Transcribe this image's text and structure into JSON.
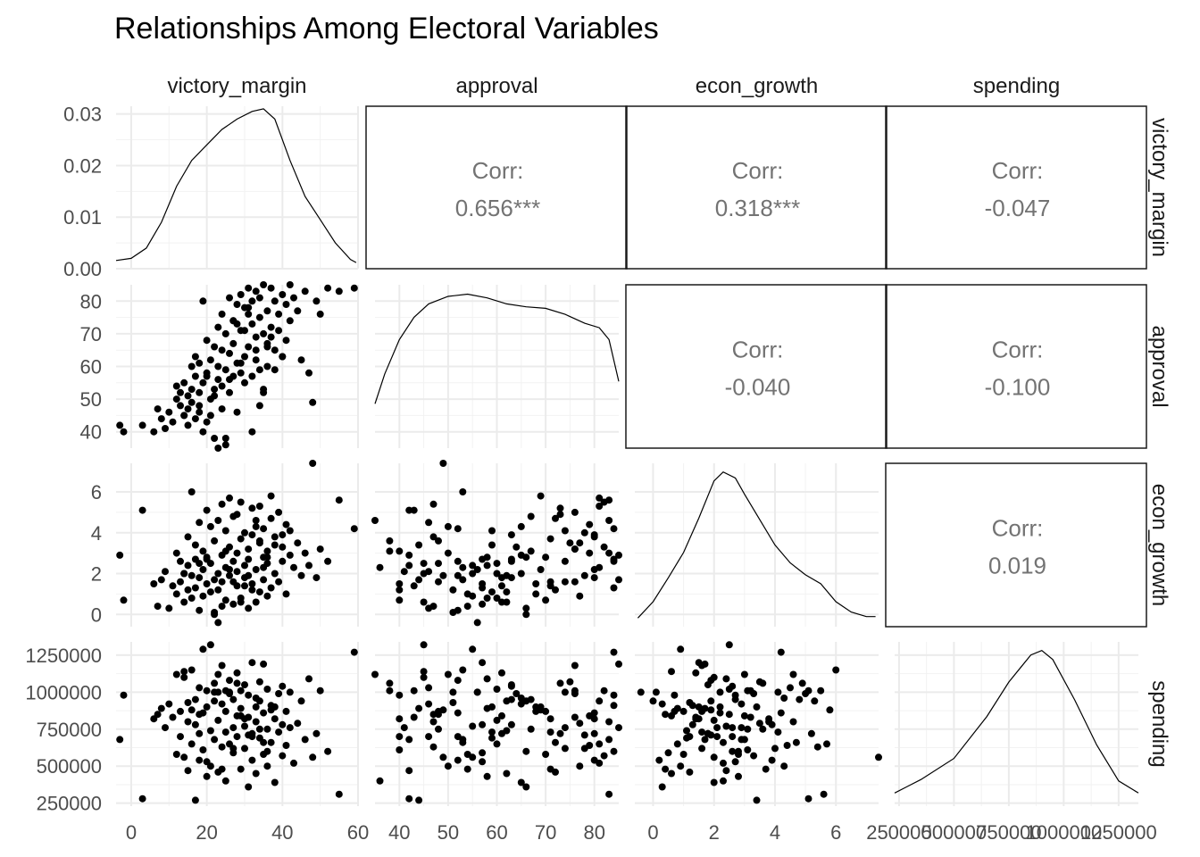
{
  "chart_data": {
    "type": "scatter",
    "title": "Relationships Among Electoral Variables",
    "variables": [
      "victory_margin",
      "approval",
      "econ_growth",
      "spending"
    ],
    "correlation_label": "Corr:",
    "correlations": [
      {
        "row": "victory_margin",
        "col": "approval",
        "value": "0.656***"
      },
      {
        "row": "victory_margin",
        "col": "econ_growth",
        "value": "0.318***"
      },
      {
        "row": "victory_margin",
        "col": "spending",
        "value": "-0.047"
      },
      {
        "row": "approval",
        "col": "econ_growth",
        "value": "-0.040"
      },
      {
        "row": "approval",
        "col": "spending",
        "value": "-0.100"
      },
      {
        "row": "econ_growth",
        "col": "spending",
        "value": "0.019"
      }
    ],
    "axes": {
      "victory_margin": {
        "range": [
          -4,
          60
        ],
        "ticks": [
          0,
          20,
          40,
          60
        ],
        "tick_labels": [
          "0",
          "20",
          "40",
          "60"
        ]
      },
      "approval": {
        "range": [
          35,
          85
        ],
        "ticks": [
          40,
          50,
          60,
          70,
          80
        ],
        "tick_labels": [
          "40",
          "50",
          "60",
          "70",
          "80"
        ]
      },
      "econ_growth": {
        "range": [
          -0.6,
          7.4
        ],
        "ticks": [
          0,
          2,
          4,
          6
        ],
        "tick_labels": [
          "0",
          "2",
          "4",
          "6"
        ]
      },
      "spending": {
        "range": [
          230000,
          1340000
        ],
        "ticks": [
          250000,
          500000,
          750000,
          1000000,
          1250000
        ],
        "tick_labels": [
          "250000",
          "500000",
          "750000",
          "1000000",
          "1250000"
        ]
      },
      "density": {
        "range": [
          0,
          0.0315
        ],
        "ticks": [
          0,
          0.01,
          0.02,
          0.03
        ],
        "tick_labels": [
          "0.00",
          "0.01",
          "0.02",
          "0.03"
        ]
      }
    },
    "densities": {
      "victory_margin": {
        "x": [
          -4,
          0,
          4,
          8,
          12,
          16,
          20,
          24,
          28,
          32,
          35,
          38,
          42,
          46,
          50,
          54,
          58,
          59.5
        ],
        "y": [
          0.0016,
          0.002,
          0.004,
          0.009,
          0.016,
          0.021,
          0.024,
          0.027,
          0.029,
          0.0305,
          0.031,
          0.029,
          0.021,
          0.014,
          0.0095,
          0.005,
          0.0018,
          0.0012
        ]
      },
      "approval": {
        "x": [
          35,
          37,
          40,
          43,
          46,
          50,
          54,
          58,
          62,
          66,
          70,
          74,
          78,
          81,
          83,
          85
        ],
        "y": [
          0.25,
          0.45,
          0.68,
          0.83,
          0.92,
          0.97,
          0.985,
          0.96,
          0.92,
          0.9,
          0.89,
          0.85,
          0.79,
          0.76,
          0.68,
          0.4
        ]
      },
      "econ_growth": {
        "x": [
          -0.5,
          0,
          0.5,
          1,
          1.5,
          2,
          2.3,
          2.7,
          3,
          3.5,
          4,
          4.5,
          5,
          5.5,
          6,
          6.5,
          7,
          7.3
        ],
        "y": [
          0.01,
          0.12,
          0.28,
          0.45,
          0.68,
          0.93,
          0.99,
          0.95,
          0.84,
          0.67,
          0.5,
          0.38,
          0.3,
          0.24,
          0.12,
          0.05,
          0.02,
          0.02
        ]
      },
      "spending": {
        "x": [
          230000,
          350000,
          500000,
          650000,
          750000,
          850000,
          900000,
          950000,
          1050000,
          1150000,
          1250000,
          1340000
        ],
        "y": [
          0.04,
          0.13,
          0.27,
          0.55,
          0.78,
          0.96,
          0.99,
          0.93,
          0.66,
          0.36,
          0.12,
          0.04
        ]
      }
    },
    "points": {
      "victory_margin": [
        -3,
        -2,
        3,
        6,
        7,
        8,
        9,
        10,
        11,
        12,
        12,
        13,
        13,
        14,
        14,
        15,
        15,
        15,
        16,
        16,
        16,
        17,
        17,
        17,
        18,
        18,
        18,
        19,
        19,
        19,
        20,
        20,
        20,
        21,
        21,
        21,
        22,
        22,
        22,
        23,
        23,
        23,
        24,
        24,
        24,
        25,
        25,
        25,
        26,
        26,
        26,
        27,
        27,
        27,
        28,
        28,
        28,
        29,
        29,
        29,
        30,
        30,
        30,
        31,
        31,
        31,
        32,
        32,
        32,
        33,
        33,
        33,
        34,
        34,
        34,
        35,
        35,
        35,
        36,
        36,
        36,
        37,
        37,
        38,
        38,
        39,
        39,
        40,
        40,
        41,
        41,
        42,
        42,
        43,
        44,
        45,
        46,
        47,
        48,
        49,
        50,
        52,
        55,
        59,
        26,
        30,
        34,
        22,
        36,
        28,
        32,
        38,
        18,
        24,
        40,
        14,
        27,
        33,
        20,
        37,
        31,
        25,
        29,
        35,
        23
      ],
      "approval": [
        42,
        40,
        42,
        40,
        47,
        44,
        41,
        46,
        43,
        50,
        54,
        48,
        52,
        45,
        55,
        47,
        51,
        42,
        53,
        60,
        49,
        44,
        57,
        63,
        52,
        46,
        61,
        80,
        55,
        40,
        68,
        58,
        43,
        62,
        45,
        50,
        66,
        53,
        38,
        60,
        72,
        56,
        47,
        65,
        76,
        59,
        70,
        36,
        64,
        81,
        52,
        74,
        57,
        67,
        79,
        61,
        46,
        82,
        71,
        58,
        55,
        78,
        63,
        76,
        66,
        84,
        73,
        57,
        80,
        69,
        83,
        62,
        75,
        59,
        81,
        70,
        52,
        85,
        67,
        77,
        60,
        72,
        84,
        80,
        65,
        76,
        71,
        82,
        63,
        79,
        68,
        85,
        74,
        81,
        77,
        62,
        83,
        58,
        49,
        80,
        76,
        84,
        83,
        84,
        56,
        71,
        48,
        51,
        66,
        73,
        40,
        59,
        48,
        54,
        63,
        45,
        74,
        65,
        57,
        69,
        78,
        38,
        61,
        53,
        35
      ],
      "econ_growth": [
        2.9,
        0.7,
        5.1,
        1.5,
        0.4,
        1.7,
        2.1,
        0.3,
        1.4,
        3.0,
        1.0,
        1.6,
        2.6,
        0.6,
        2.0,
        3.8,
        1.2,
        2.4,
        6.0,
        0.8,
        1.9,
        3.4,
        1.3,
        2.7,
        0.2,
        4.5,
        1.8,
        2.2,
        0.9,
        3.1,
        1.5,
        2.8,
        5.1,
        1.1,
        2.5,
        4.3,
        0.0,
        1.7,
        3.6,
        2.0,
        1.2,
        -0.4,
        5.4,
        2.9,
        1.6,
        4.1,
        0.7,
        2.3,
        3.3,
        5.7,
        1.9,
        2.6,
        0.5,
        4.8,
        3.0,
        1.4,
        2.1,
        5.5,
        3.7,
        0.8,
        2.4,
        4.0,
        1.8,
        3.2,
        0.3,
        2.7,
        5.2,
        1.5,
        3.9,
        2.2,
        4.6,
        0.6,
        3.5,
        1.1,
        5.3,
        2.8,
        4.2,
        1.7,
        3.1,
        0.9,
        2.5,
        4.7,
        1.3,
        3.8,
        2.0,
        5.0,
        1.6,
        3.3,
        2.6,
        4.4,
        1.0,
        2.9,
        4.1,
        2.3,
        3.5,
        1.9,
        3.0,
        2.4,
        7.4,
        1.8,
        3.2,
        2.6,
        5.6,
        4.2,
        2.2,
        1.4,
        3.6,
        0.1,
        2.8,
        4.9,
        1.2,
        3.4,
        2.5,
        0.4,
        3.9,
        2.0,
        1.6,
        4.3,
        2.7,
        5.8,
        1.9,
        3.1,
        0.6,
        2.3,
        4.6
      ],
      "spending": [
        680000,
        980000,
        280000,
        820000,
        850000,
        890000,
        760000,
        920000,
        830000,
        1120000,
        580000,
        870000,
        700000,
        1140000,
        560000,
        800000,
        930000,
        470000,
        1150000,
        650000,
        880000,
        270000,
        780000,
        950000,
        540000,
        1030000,
        720000,
        860000,
        1290000,
        610000,
        900000,
        430000,
        1010000,
        740000,
        1320000,
        500000,
        940000,
        680000,
        1060000,
        810000,
        460000,
        1000000,
        630000,
        920000,
        1180000,
        730000,
        870000,
        400000,
        990000,
        650000,
        1080000,
        760000,
        590000,
        950000,
        840000,
        1130000,
        700000,
        1010000,
        480000,
        890000,
        770000,
        620000,
        1050000,
        830000,
        360000,
        980000,
        720000,
        1200000,
        540000,
        900000,
        800000,
        450000,
        1070000,
        690000,
        940000,
        580000,
        860000,
        1190000,
        750000,
        500000,
        1020000,
        660000,
        910000,
        820000,
        390000,
        990000,
        730000,
        570000,
        1040000,
        640000,
        870000,
        760000,
        1000000,
        520000,
        790000,
        940000,
        680000,
        1090000,
        560000,
        720000,
        1010000,
        600000,
        310000,
        1270000,
        1000000,
        820000,
        750000,
        1000000,
        600000,
        1060000,
        700000,
        900000,
        850000,
        480000,
        780000,
        1100000,
        620000,
        960000,
        530000,
        880000,
        710000,
        1010000,
        840000,
        660000,
        1120000
      ]
    }
  }
}
